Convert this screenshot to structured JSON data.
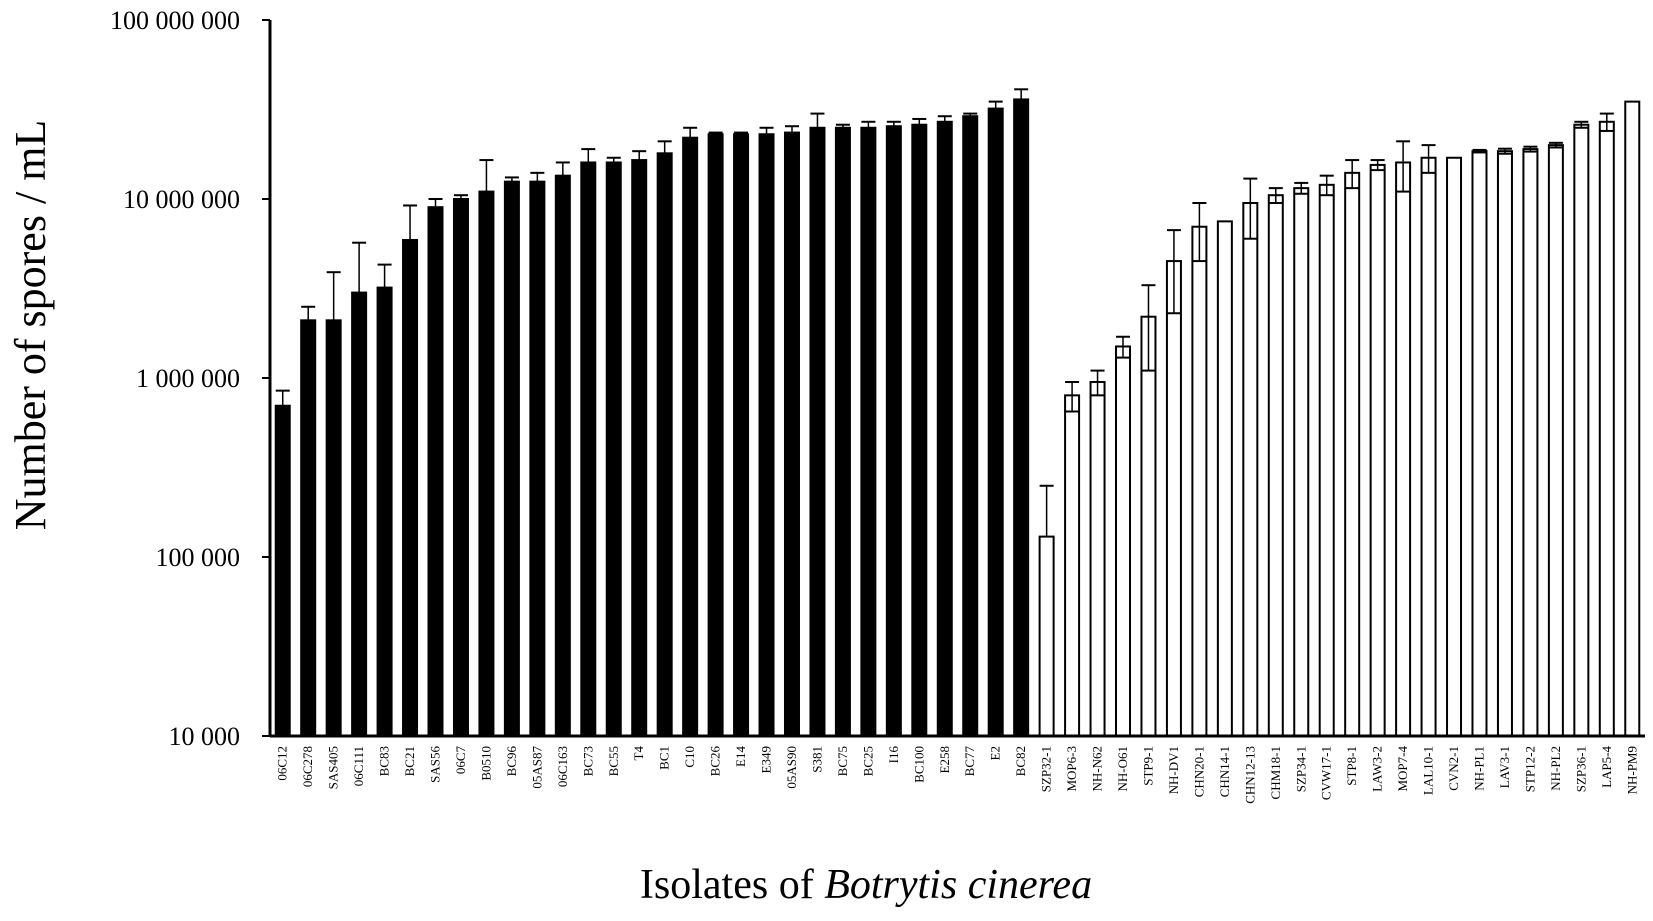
{
  "chart_data": {
    "type": "bar",
    "title": "",
    "ylabel": "Number of spores / mL",
    "xlabel_prefix": "Isolates of ",
    "xlabel_italic": "Botrytis cinerea",
    "yscale": "log",
    "ylim": [
      10000,
      100000000
    ],
    "yticks": [
      10000,
      100000,
      1000000,
      10000000,
      100000000
    ],
    "ytick_labels": [
      "10 000",
      "100 000",
      "1 000 000",
      "10 000 000",
      "100 000 000"
    ],
    "grid": false,
    "legend": "none",
    "series": [
      {
        "fill": "#000000",
        "categories": [
          "06C12",
          "06C278",
          "SAS405",
          "06C111",
          "BC83",
          "BC21",
          "SAS56",
          "06C7",
          "B0510",
          "BC96",
          "05AS87",
          "06C163",
          "BC73",
          "BC55",
          "T4",
          "BC1",
          "C10",
          "BC26",
          "E14",
          "E349",
          "05AS90",
          "S381",
          "BC75",
          "BC25",
          "I16",
          "BC100",
          "E258",
          "BC77",
          "E2",
          "BC82"
        ],
        "values": [
          700000,
          2100000,
          2100000,
          3000000,
          3200000,
          5900000,
          9000000,
          10000000,
          11000000,
          12500000,
          12500000,
          13500000,
          16000000,
          16000000,
          16500000,
          18000000,
          22000000,
          23000000,
          23000000,
          23000000,
          23500000,
          25000000,
          25000000,
          25000000,
          25500000,
          26000000,
          27000000,
          29000000,
          32000000,
          36000000
        ],
        "error_plus": [
          150000,
          400000,
          1800000,
          2700000,
          1100000,
          3300000,
          1000000,
          500000,
          5500000,
          700000,
          1500000,
          2500000,
          3000000,
          1000000,
          2000000,
          3000000,
          3000000,
          500000,
          500000,
          2000000,
          2000000,
          5000000,
          1000000,
          2000000,
          1500000,
          2000000,
          2000000,
          1000000,
          3000000,
          5000000
        ],
        "error_minus": [
          150000,
          400000,
          1900000,
          2850000,
          1200000,
          3600000,
          1000000,
          500000,
          5500000,
          700000,
          1500000,
          2500000,
          3000000,
          1000000,
          2000000,
          3000000,
          3000000,
          500000,
          500000,
          2000000,
          2000000,
          5000000,
          1000000,
          2000000,
          1500000,
          2000000,
          2000000,
          1000000,
          3000000,
          5000000
        ]
      },
      {
        "fill": "#ffffff",
        "categories": [
          "SZP32-1",
          "MOP6-3",
          "NH-N62",
          "NH-O61",
          "STP9-1",
          "NH-DV1",
          "CHN20-1",
          "CHN14-1",
          "CHN12-13",
          "CHM18-1",
          "SZP34-1",
          "CVW17-1",
          "STP8-1",
          "LAW3-2",
          "MOP7-4",
          "LAL10-1",
          "CVN2-1",
          "NH-PL1",
          "LAV3-1",
          "STP12-2",
          "NH-PL2",
          "SZP36-1",
          "LAP5-4",
          "NH-PM9"
        ],
        "values": [
          130000,
          800000,
          950000,
          1500000,
          2200000,
          4500000,
          7000000,
          7500000,
          9500000,
          10500000,
          11500000,
          12000000,
          14000000,
          15500000,
          16000000,
          17000000,
          17000000,
          18500000,
          18500000,
          19000000,
          20000000,
          26000000,
          27000000,
          35000000
        ],
        "error_plus": [
          120000,
          150000,
          150000,
          200000,
          1100000,
          2200000,
          2500000,
          0,
          3500000,
          1000000,
          800000,
          1500000,
          2500000,
          1000000,
          5000000,
          3000000,
          0,
          300000,
          600000,
          600000,
          600000,
          1000000,
          3000000,
          0
        ],
        "error_minus": [
          0,
          150000,
          150000,
          200000,
          1100000,
          2200000,
          2500000,
          0,
          3500000,
          1000000,
          800000,
          1500000,
          2500000,
          1000000,
          5000000,
          3000000,
          0,
          300000,
          600000,
          600000,
          600000,
          1000000,
          3000000,
          0
        ]
      }
    ]
  }
}
